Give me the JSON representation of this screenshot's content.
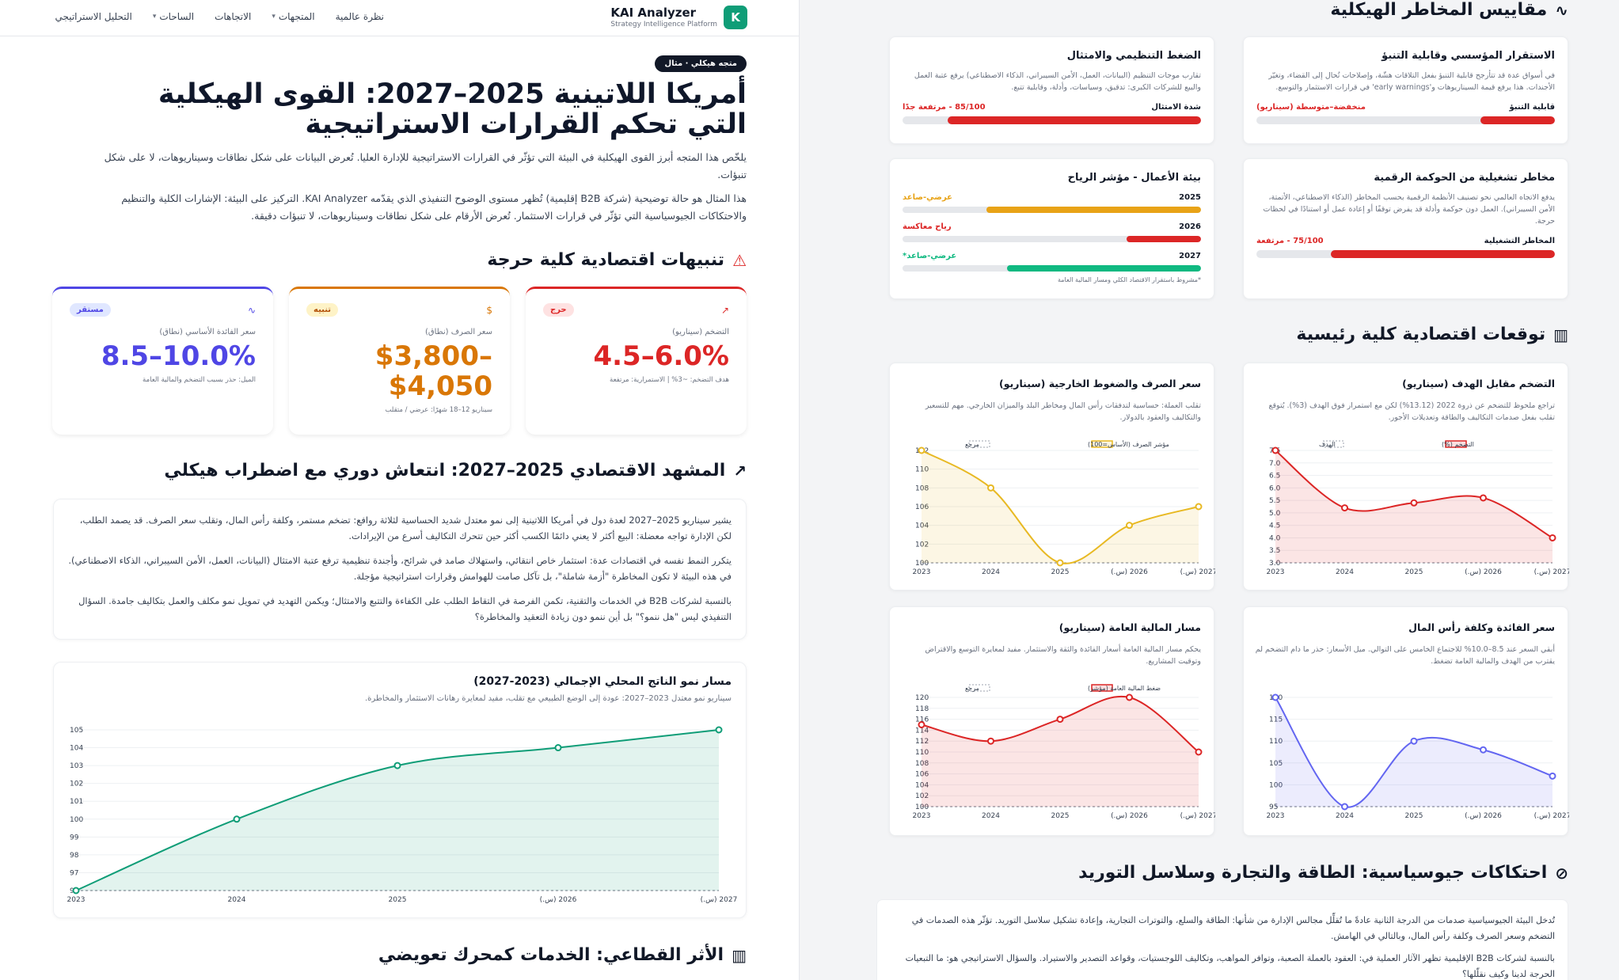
{
  "nav": {
    "brand_logo": "K",
    "brand_name": "KAI Analyzer",
    "brand_sub": "Strategy Intelligence Platform",
    "links": [
      "نظرة عالمية",
      "المتجهات",
      "الاتجاهات",
      "الساحات",
      "التحليل الاستراتيجي"
    ]
  },
  "hero": {
    "badge": "متجه هيكلي · مثال",
    "title": "أمريكا اللاتينية 2025–2027: القوى الهيكلية التي تحكم القرارات الاستراتيجية",
    "p1": "يلخّص هذا المتجه أبرز القوى الهيكلية في البيئة التي تؤثّر في القرارات الاستراتيجية للإدارة العليا. تُعرض البيانات على شكل نطاقات وسيناريوهات، لا على شكل تنبؤات.",
    "p2": "هذا المثال هو حالة توضيحية (شركة B2B إقليمية) تُظهر مستوى الوضوح التنفيذي الذي يقدّمه KAI Analyzer. التركيز على البيئة: الإشارات الكلية والتنظيم والاحتكاكات الجيوسياسية التي تؤثّر في قرارات الاستثمار. تُعرض الأرقام على شكل نطاقات وسيناريوهات، لا تنبؤات دقيقة."
  },
  "alerts": {
    "section_title": "تنبيهات اقتصادية كلية حرجة",
    "cards": [
      {
        "pill": "حرج",
        "label": "التضخم (سيناريو)",
        "value": "4.5–6.0%",
        "note": "هدف التضخم: ~3% | الاستمرارية: مرتفعة",
        "color": "#dc2626",
        "pill_bg": "#fee2e2",
        "icon": "trend-up-icon"
      },
      {
        "pill": "تنبيه",
        "label": "سعر الصرف (نطاق)",
        "value": "$3,800–$4,050",
        "note": "سيناريو 12–18 شهرًا: عرضي / متقلب",
        "color": "#d97706",
        "pill_bg": "#fef3c7",
        "icon": "dollar-icon"
      },
      {
        "pill": "مستقر",
        "label": "سعر الفائدة الأساسي (نطاق)",
        "value": "8.5–10.0%",
        "note": "الميل: حذر بسبب التضخم والمالية العامة",
        "color": "#4f46e5",
        "pill_bg": "#e0e7ff",
        "icon": "pulse-icon"
      }
    ]
  },
  "scenario": {
    "section_title": "المشهد الاقتصادي 2025–2027: انتعاش دوري مع اضطراب هيكلي",
    "p1": "يشير سيناريو 2025–2027 لعدة دول في أمريكا اللاتينية إلى نمو معتدل شديد الحساسية لثلاثة روافع: تضخم مستمر، وكلفة رأس المال، وتقلب سعر الصرف. قد يصمد الطلب، لكن الإدارة تواجه معضلة: البيع أكثر لا يعني دائمًا الكسب أكثر حين تتحرك التكاليف أسرع من الإيرادات.",
    "p2": "يتكرر النمط نفسه في اقتصادات عدة: استثمار خاص انتقائي، واستهلاك صامد في شرائح، وأجندة تنظيمية ترفع عتبة الامتثال (البيانات، العمل، الأمن السيبراني، الذكاء الاصطناعي). في هذه البيئة لا تكون المخاطرة \"أزمة شاملة\"، بل تآكل صامت للهوامش وقرارات استراتيجية مؤجلة.",
    "p3": "بالنسبة لشركات B2B في الخدمات والتقنية، تكمن الفرصة في التقاط الطلب على الكفاءة والتتبع والامتثال؛ ويكمن التهديد في تمويل نمو مكلف والعمل بتكاليف جامدة. السؤال التنفيذي ليس \"هل ننمو؟\" بل أين ننمو دون زيادة التعقيد والمخاطرة؟"
  },
  "gdp": {
    "title": "مسار نمو الناتج المحلي الإجمالي (2023-2027)",
    "sub": "سيناريو نمو معتدل 2023–2027: عودة إلى الوضع الطبيعي مع تقلب، مفيد لمعايرة رهانات الاستثمار والمخاطرة."
  },
  "sectoral": {
    "section_title": "الأثر القطاعي: الخدمات كمحرك تعويضي"
  },
  "risks": {
    "section_title": "مقاييس المخاطر الهيكلية",
    "cards": [
      {
        "title": "الاستقرار المؤسسي وقابلية التنبؤ",
        "desc": "في أسواق عدة قد تتأرجح قابلية التنبؤ بفعل التلاقات هشّة، وإصلاحات تُحال إلى القضاء، وتغيّر الأجندات. هذا يرفع قيمة السيناريوهات و'early warnings' في قرارات الاستثمار والتوسع.",
        "row_label": "قابلية التنبؤ",
        "row_value": "منخفضة–متوسطة (سيناريو)",
        "fill": 0.25,
        "color": "#dc2626"
      },
      {
        "title": "الضغط التنظيمي والامتثال",
        "desc": "تقارب موجات التنظيم (البيانات، العمل، الأمن السيبراني، الذكاء الاصطناعي) يرفع عتبة العمل والبيع للشركات الكبرى: تدقيق، وسياسات، وأدلة، وقابلية تتبع.",
        "row_label": "شدة الامتثال",
        "row_value": "85/100 - مرتفعة جدًا",
        "fill": 0.85,
        "color": "#dc2626"
      },
      {
        "title": "مخاطر تشغيلية من الحوكمة الرقمية",
        "desc": "يدفع الاتجاه العالمي نحو تصنيف الأنظمة الرقمية بحسب المخاطر (الذكاء الاصطناعي، الأتمتة، الأمن السيبراني). العمل دون حوكمة وأدلة قد يفرض توقفًا أو إعادة عمل أو استنادًا في لحظات حرجة.",
        "row_label": "المخاطر التشغيلية",
        "row_value": "75/100 - مرتفعة",
        "fill": 0.75,
        "color": "#dc2626"
      },
      {
        "title": "بيئة الأعمال - مؤشر الرياح",
        "years": [
          {
            "year": "2025",
            "status": "عرضي-صاعد",
            "fill": 0.72,
            "color": "#e8a317"
          },
          {
            "year": "2026",
            "status": "رياح معاكسة",
            "fill": 0.25,
            "color": "#dc2626"
          },
          {
            "year": "2027",
            "status": "عرضي-صاعد*",
            "fill": 0.65,
            "color": "#10b981"
          }
        ],
        "note": "*مشروط باستقرار الاقتصاد الكلي ومسار المالية العامة"
      }
    ]
  },
  "forecasts": {
    "section_title": "توقعات اقتصادية كلية رئيسية"
  },
  "charts": [
    {
      "title": "التضخم مقابل الهدف (سيناريو)",
      "desc": "تراجع ملحوظ للتضخم عن ذروة 2022 (13.12%) لكن مع استمرار فوق الهدف (3%). يُتوقع تقلب بفعل صدمات التكاليف والطاقة وتعديلات الأجور.",
      "legend": [
        "التضخم (%)",
        "الهدف"
      ]
    },
    {
      "title": "سعر الصرف والضغوط الخارجية (سيناريو)",
      "desc": "تقلب العملة: حساسية لتدفقات رأس المال ومخاطر البلد والميزان الخارجي. مهم للتسعير والتكاليف والعقود بالدولار.",
      "legend": [
        "مؤشر الصرف (الأساس=100)",
        "مرجع"
      ]
    },
    {
      "title": "سعر الفائدة وكلفة رأس المال",
      "desc": "أبقي السعر عند 8.5–10.0% للاجتماع الخامس على التوالي. ميل الأسعار: حذر ما دام التضخم لم يقترب من الهدف والمالية العامة تضغط.",
      "legend": []
    },
    {
      "title": "مسار المالية العامة (سيناريو)",
      "desc": "يحكم مسار المالية العامة أسعار الفائدة والثقة والاستثمار. مفيد لمعايرة التوسع والاقتراض وتوقيت المشاريع.",
      "legend": [
        "ضغط المالية العامة (مؤشر)",
        "مرجع"
      ]
    }
  ],
  "geo": {
    "section_title": "احتكاكات جيوسياسية: الطاقة والتجارة وسلاسل التوريد",
    "p1": "تُدخل البيئة الجيوسياسية صدمات من الدرجة الثانية عادةً ما تُقلِّل مجالس الإدارة من شأنها: الطاقة والسلع، والتوترات التجارية، وإعادة تشكيل سلاسل التوريد. تؤثّر هذه الصدمات في التضخم وسعر الصرف وكلفة رأس المال، وبالتالي في الهامش.",
    "p2": "بالنسبة لشركات B2B الإقليمية تظهر الآثار العملية في: العقود بالعملة الصعبة، وتوافر المواهب، وتكاليف اللوجستيات، وقواعد التصدير والاستيراد. والسؤال الاستراتيجي هو: ما التبعيات الحرجة لدينا وكيف نقلّلها؟"
  },
  "chart_data": [
    {
      "type": "area",
      "title": "مسار نمو الناتج المحلي الإجمالي (2023-2027)",
      "categories": [
        "2023",
        "2024",
        "2025",
        "2026 (س.)",
        "2027 (س.)"
      ],
      "values": [
        96,
        100,
        103,
        104,
        105
      ],
      "ylim": [
        96,
        105
      ],
      "color": "#0f9d77"
    },
    {
      "type": "area",
      "title": "التضخم مقابل الهدف (سيناريو)",
      "categories": [
        "2023",
        "2024",
        "2025",
        "2026 (س.)",
        "2027 (س.)"
      ],
      "values": [
        7.5,
        5.2,
        5.4,
        5.6,
        4.0
      ],
      "ylim": [
        3.0,
        7.5
      ],
      "color": "#dc2626"
    },
    {
      "type": "area",
      "title": "سعر الصرف والضغوط الخارجية (سيناريو)",
      "categories": [
        "2023",
        "2024",
        "2025",
        "2026 (س.)",
        "2027 (س.)"
      ],
      "values": [
        112,
        108,
        100,
        104,
        106
      ],
      "ylim": [
        100,
        112
      ],
      "color": "#e8b923"
    },
    {
      "type": "area",
      "title": "سعر الفائدة وكلفة رأس المال",
      "categories": [
        "2023",
        "2024",
        "2025",
        "2026 (س.)",
        "2027 (س.)"
      ],
      "values": [
        120,
        95,
        110,
        108,
        102
      ],
      "ylim": [
        95,
        120
      ],
      "color": "#6366f1"
    },
    {
      "type": "area",
      "title": "مسار المالية العامة (سيناريو)",
      "categories": [
        "2023",
        "2024",
        "2025",
        "2026 (س.)",
        "2027 (س.)"
      ],
      "values": [
        115,
        112,
        116,
        120,
        110
      ],
      "ylim": [
        100,
        120
      ],
      "color": "#dc2626"
    }
  ]
}
